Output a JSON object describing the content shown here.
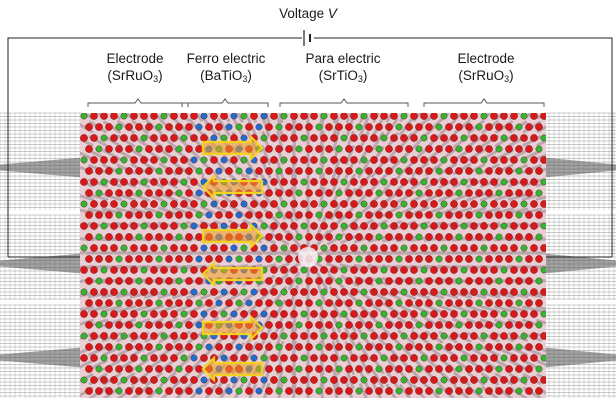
{
  "voltage": {
    "label": "Voltage",
    "symbol": "V"
  },
  "regions": [
    {
      "name": "Electrode",
      "formula_main": "SrRuO",
      "formula_sub": "3"
    },
    {
      "name": "Ferro electric",
      "formula_main": "BaTiO",
      "formula_sub": "3"
    },
    {
      "name": "Para electric",
      "formula_main": "SrTiO",
      "formula_sub": "3"
    },
    {
      "name": "Electrode",
      "formula_main": "SrRuO",
      "formula_sub": "3"
    }
  ],
  "colors": {
    "oxygen": "#d7191c",
    "strontium": "#33b533",
    "titanium": "#1e6fcf",
    "bond": "#b9a3aa",
    "arrow_fill": "#f39c25",
    "arrow_stroke": "#f2d21e",
    "grid": "#444444"
  },
  "icons": [
    "battery-symbol-icon",
    "polarization-arrow-icon"
  ]
}
